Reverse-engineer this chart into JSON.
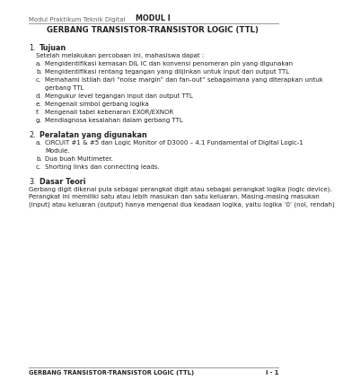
{
  "header_left": "Modul Praktikum Teknik Digital",
  "header_center": "MODUL I",
  "title": "GERBANG TRANSISTOR-TRANSISTOR LOGIC (TTL)",
  "footer_left": "GERBANG TRANSISTOR-TRANSISTOR LOGIC (TTL)",
  "footer_right": "I - 1",
  "section1_num": "1.",
  "section1_label": "Tujuan",
  "section1_intro": "Setelah melakukan percobaan ini, mahasiswa dapat :",
  "section1_items": [
    [
      "a.",
      "Mengidentifikasi kemasan DIL IC dan konvensi penomeran pin yang digunakan"
    ],
    [
      "b.",
      "Mengidentifikasi rentang tegangan yang diijinkan untuk input dan output TTL"
    ],
    [
      "c.",
      "Memahami istilah dari “noise margin” dan fan-out” sebagaimana yang diterapkan untuk",
      "gerbang TTL"
    ],
    [
      "d.",
      "Mengukur level tegangan input dan output TTL"
    ],
    [
      "e.",
      "Mengenali simbol gerbang logika"
    ],
    [
      "f.",
      "Mengenali tabel kebenaran EXOR/EXNOR"
    ],
    [
      "g.",
      "Mendiagnosa kesalahan dalam gerbang TTL"
    ]
  ],
  "section2_num": "2.",
  "section2_label": "Peralatan yang digunakan",
  "section2_items": [
    [
      "a.",
      "CIRCUIT #1 & #5 dan Logic Monitor of D3000 – 4.1 Fundamental of Digital Logic-1",
      "Module."
    ],
    [
      "b.",
      "Dua buah Multimeter."
    ],
    [
      "c.",
      "Shorting links dan connecting leads."
    ]
  ],
  "section3_num": "3.",
  "section3_label": "Dasar Teori",
  "section3_lines": [
    "Gerbang digit dikenal pula sebagai perangkat digit atau sebagai perangkat logika (logic device).",
    "Perangkat ini memiliki satu atau lebih masukan dan satu keluaran. Masing-masing masukan",
    "(input) atau keluaran (output) hanya mengenal dua keadaan logika, yaitu logika ‘0’ (nol, rendah)"
  ],
  "bg_color": "#ffffff",
  "line_color": "#999999",
  "header_color": "#555555",
  "text_color": "#222222",
  "fs_header": 5.0,
  "fs_modul": 5.8,
  "fs_title": 6.2,
  "fs_section": 5.8,
  "fs_body": 5.0,
  "fs_footer": 4.8
}
